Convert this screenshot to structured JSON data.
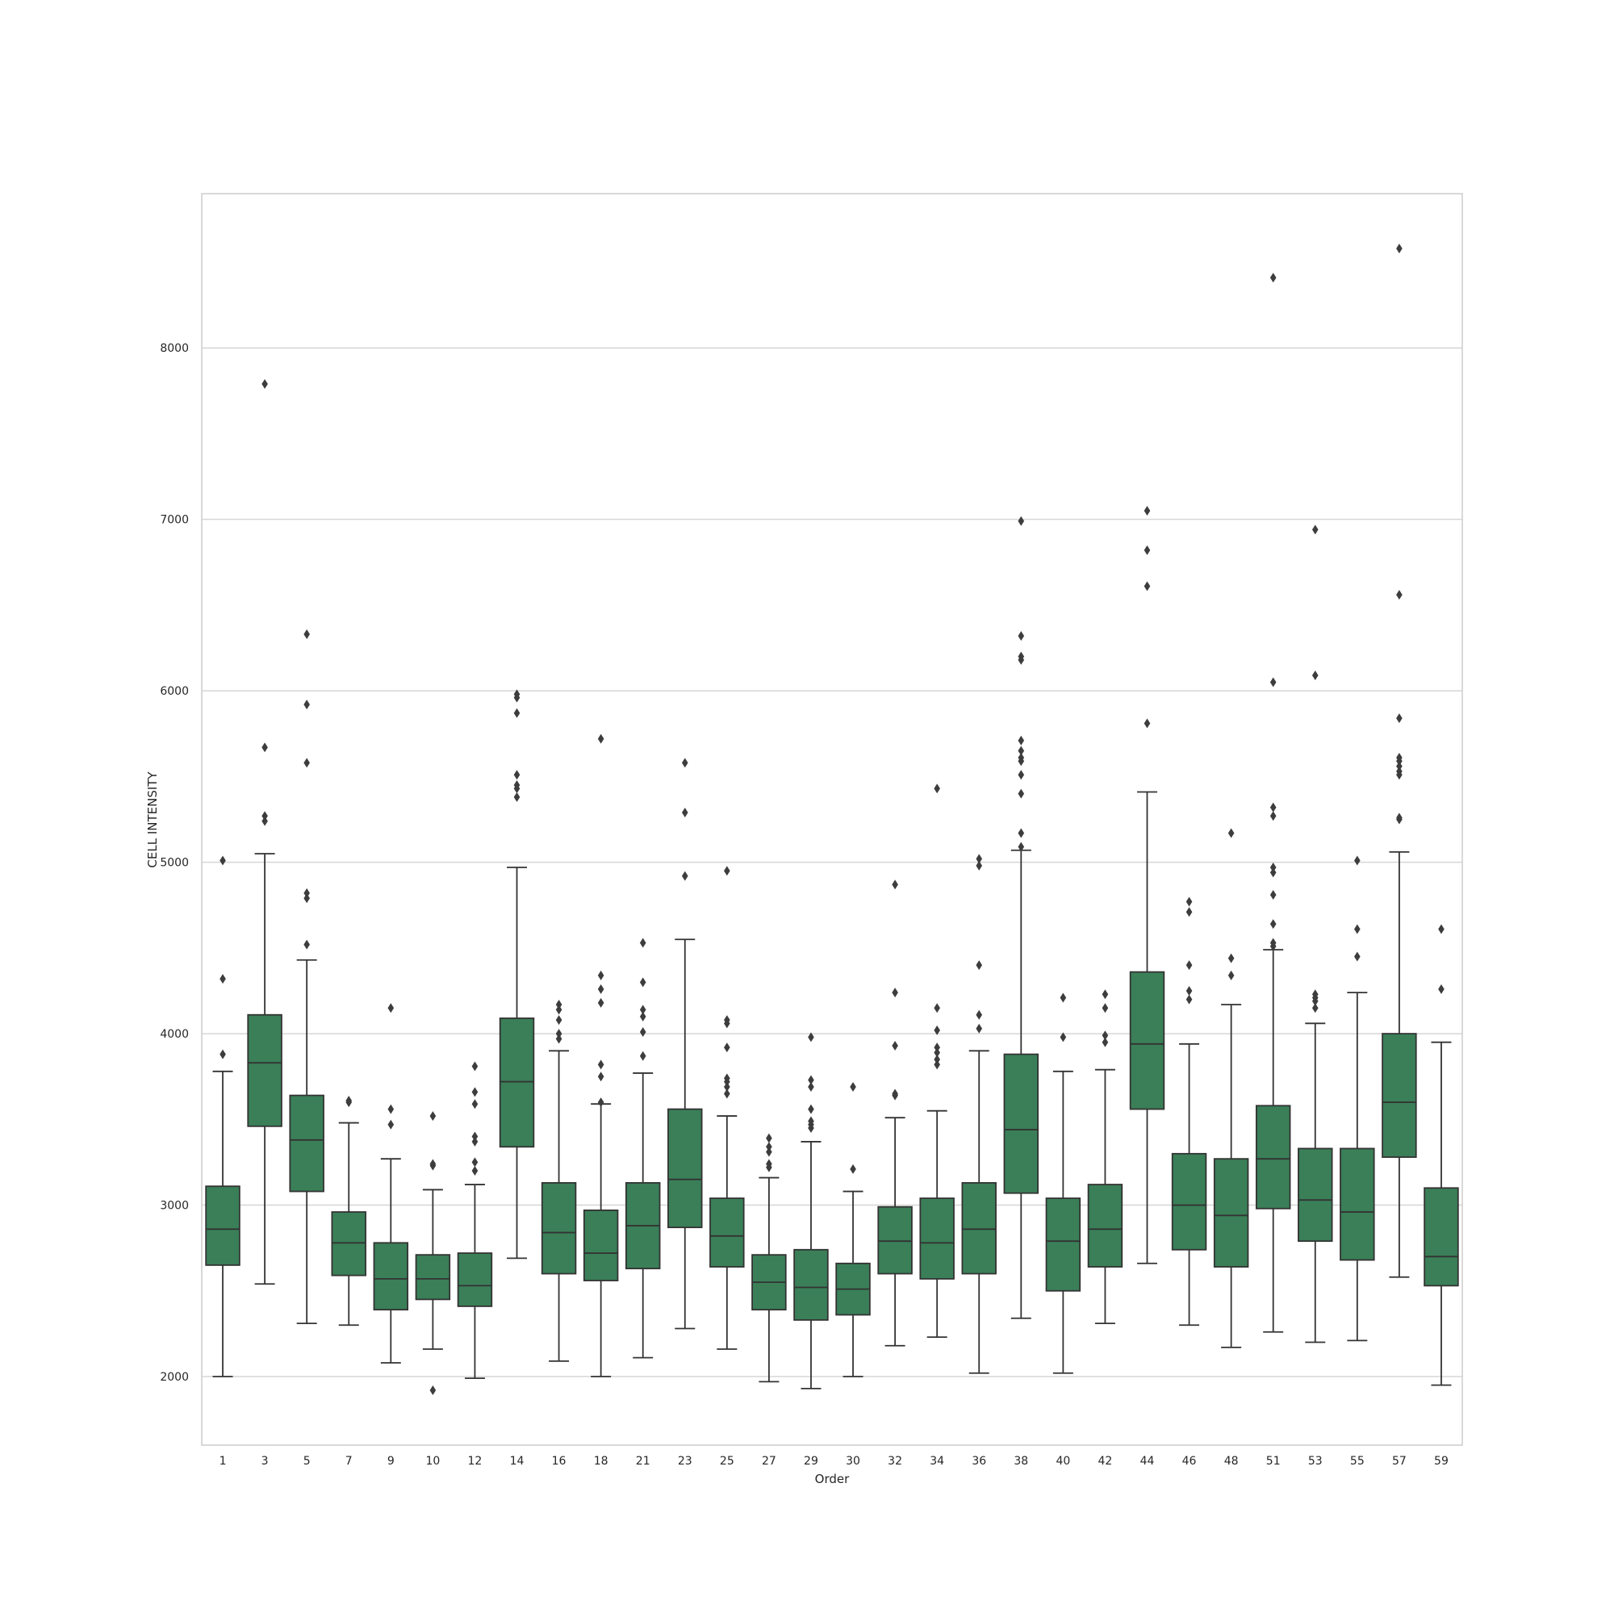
{
  "chart_data": {
    "type": "box",
    "title": "",
    "xlabel": "Order",
    "ylabel": "CELL INTENSITY",
    "ylim": [
      1600,
      8900
    ],
    "yticks": [
      2000,
      3000,
      4000,
      5000,
      6000,
      7000,
      8000
    ],
    "ytick_labels": [
      "2000",
      "3000",
      "4000",
      "5000",
      "6000",
      "7000",
      "8000"
    ],
    "grid": "horizontal",
    "box_color": "#3a7f58",
    "line_color": "#333333",
    "categories": [
      "1",
      "3",
      "5",
      "7",
      "9",
      "10",
      "12",
      "14",
      "16",
      "18",
      "21",
      "23",
      "25",
      "27",
      "29",
      "30",
      "32",
      "34",
      "36",
      "38",
      "40",
      "42",
      "44",
      "46",
      "48",
      "51",
      "53",
      "55",
      "57",
      "59"
    ],
    "boxes": [
      {
        "whislo": 2000,
        "q1": 2650,
        "med": 2860,
        "q3": 3110,
        "whishi": 3780,
        "fliers": [
          3880,
          4320,
          5010
        ]
      },
      {
        "whislo": 2540,
        "q1": 3460,
        "med": 3830,
        "q3": 4110,
        "whishi": 5050,
        "fliers": [
          5240,
          5270,
          5670,
          7790
        ]
      },
      {
        "whislo": 2310,
        "q1": 3080,
        "med": 3380,
        "q3": 3640,
        "whishi": 4430,
        "fliers": [
          4520,
          4790,
          4820,
          5580,
          5920,
          6330
        ]
      },
      {
        "whislo": 2300,
        "q1": 2590,
        "med": 2780,
        "q3": 2960,
        "whishi": 3480,
        "fliers": [
          3600,
          3610
        ]
      },
      {
        "whislo": 2080,
        "q1": 2390,
        "med": 2570,
        "q3": 2780,
        "whishi": 3270,
        "fliers": [
          3470,
          3560,
          4150
        ]
      },
      {
        "whislo": 2160,
        "q1": 2450,
        "med": 2570,
        "q3": 2710,
        "whishi": 3090,
        "fliers": [
          1920,
          3230,
          3240,
          3520
        ]
      },
      {
        "whislo": 1990,
        "q1": 2410,
        "med": 2530,
        "q3": 2720,
        "whishi": 3120,
        "fliers": [
          3200,
          3250,
          3370,
          3400,
          3590,
          3660,
          3810
        ]
      },
      {
        "whislo": 2690,
        "q1": 3340,
        "med": 3720,
        "q3": 4090,
        "whishi": 4970,
        "fliers": [
          5380,
          5430,
          5450,
          5510,
          5870,
          5960,
          5980
        ]
      },
      {
        "whislo": 2090,
        "q1": 2600,
        "med": 2840,
        "q3": 3130,
        "whishi": 3900,
        "fliers": [
          3970,
          4000,
          4080,
          4140,
          4170
        ]
      },
      {
        "whislo": 2000,
        "q1": 2560,
        "med": 2720,
        "q3": 2970,
        "whishi": 3590,
        "fliers": [
          3600,
          3750,
          3820,
          4180,
          4260,
          4340,
          5720
        ]
      },
      {
        "whislo": 2110,
        "q1": 2630,
        "med": 2880,
        "q3": 3130,
        "whishi": 3770,
        "fliers": [
          3870,
          4010,
          4100,
          4140,
          4300,
          4530
        ]
      },
      {
        "whislo": 2280,
        "q1": 2870,
        "med": 3150,
        "q3": 3560,
        "whishi": 4550,
        "fliers": [
          4920,
          5290,
          5580
        ]
      },
      {
        "whislo": 2160,
        "q1": 2640,
        "med": 2820,
        "q3": 3040,
        "whishi": 3520,
        "fliers": [
          3650,
          3690,
          3720,
          3740,
          3920,
          4060,
          4080,
          4950
        ]
      },
      {
        "whislo": 1970,
        "q1": 2390,
        "med": 2550,
        "q3": 2710,
        "whishi": 3160,
        "fliers": [
          3220,
          3240,
          3310,
          3340,
          3390
        ]
      },
      {
        "whislo": 1930,
        "q1": 2330,
        "med": 2520,
        "q3": 2740,
        "whishi": 3370,
        "fliers": [
          3450,
          3470,
          3490,
          3560,
          3690,
          3730,
          3980
        ]
      },
      {
        "whislo": 2000,
        "q1": 2360,
        "med": 2510,
        "q3": 2660,
        "whishi": 3080,
        "fliers": [
          3210,
          3690
        ]
      },
      {
        "whislo": 2180,
        "q1": 2600,
        "med": 2790,
        "q3": 2990,
        "whishi": 3510,
        "fliers": [
          3640,
          3650,
          3930,
          4240,
          4870
        ]
      },
      {
        "whislo": 2230,
        "q1": 2570,
        "med": 2780,
        "q3": 3040,
        "whishi": 3550,
        "fliers": [
          3820,
          3850,
          3890,
          3920,
          4020,
          4150,
          5430
        ]
      },
      {
        "whislo": 2020,
        "q1": 2600,
        "med": 2860,
        "q3": 3130,
        "whishi": 3900,
        "fliers": [
          4030,
          4110,
          4400,
          4980,
          5020
        ]
      },
      {
        "whislo": 2340,
        "q1": 3070,
        "med": 3440,
        "q3": 3880,
        "whishi": 5070,
        "fliers": [
          5090,
          5170,
          5400,
          5510,
          5590,
          5610,
          5650,
          5710,
          6180,
          6200,
          6320,
          6990
        ]
      },
      {
        "whislo": 2020,
        "q1": 2500,
        "med": 2790,
        "q3": 3040,
        "whishi": 3780,
        "fliers": [
          3980,
          4210
        ]
      },
      {
        "whislo": 2310,
        "q1": 2640,
        "med": 2860,
        "q3": 3120,
        "whishi": 3790,
        "fliers": [
          3950,
          3990,
          4150,
          4230
        ]
      },
      {
        "whislo": 2660,
        "q1": 3560,
        "med": 3940,
        "q3": 4360,
        "whishi": 5410,
        "fliers": [
          5810,
          6610,
          6820,
          7050
        ]
      },
      {
        "whislo": 2300,
        "q1": 2740,
        "med": 3000,
        "q3": 3300,
        "whishi": 3940,
        "fliers": [
          4200,
          4250,
          4400,
          4710,
          4770
        ]
      },
      {
        "whislo": 2170,
        "q1": 2640,
        "med": 2940,
        "q3": 3270,
        "whishi": 4170,
        "fliers": [
          4340,
          4440,
          5170
        ]
      },
      {
        "whislo": 2260,
        "q1": 2980,
        "med": 3270,
        "q3": 3580,
        "whishi": 4490,
        "fliers": [
          4510,
          4530,
          4640,
          4810,
          4940,
          4970,
          5270,
          5320,
          6050,
          8410
        ]
      },
      {
        "whislo": 2200,
        "q1": 2790,
        "med": 3030,
        "q3": 3330,
        "whishi": 4060,
        "fliers": [
          4150,
          4190,
          4210,
          4230,
          6090,
          6940
        ]
      },
      {
        "whislo": 2210,
        "q1": 2680,
        "med": 2960,
        "q3": 3330,
        "whishi": 4240,
        "fliers": [
          4450,
          4610,
          5010
        ]
      },
      {
        "whislo": 2580,
        "q1": 3280,
        "med": 3600,
        "q3": 4000,
        "whishi": 5060,
        "fliers": [
          5250,
          5260,
          5510,
          5530,
          5560,
          5590,
          5610,
          5840,
          6560,
          8580
        ]
      },
      {
        "whislo": 1950,
        "q1": 2530,
        "med": 2700,
        "q3": 3100,
        "whishi": 3950,
        "fliers": [
          4260,
          4610
        ]
      }
    ]
  }
}
